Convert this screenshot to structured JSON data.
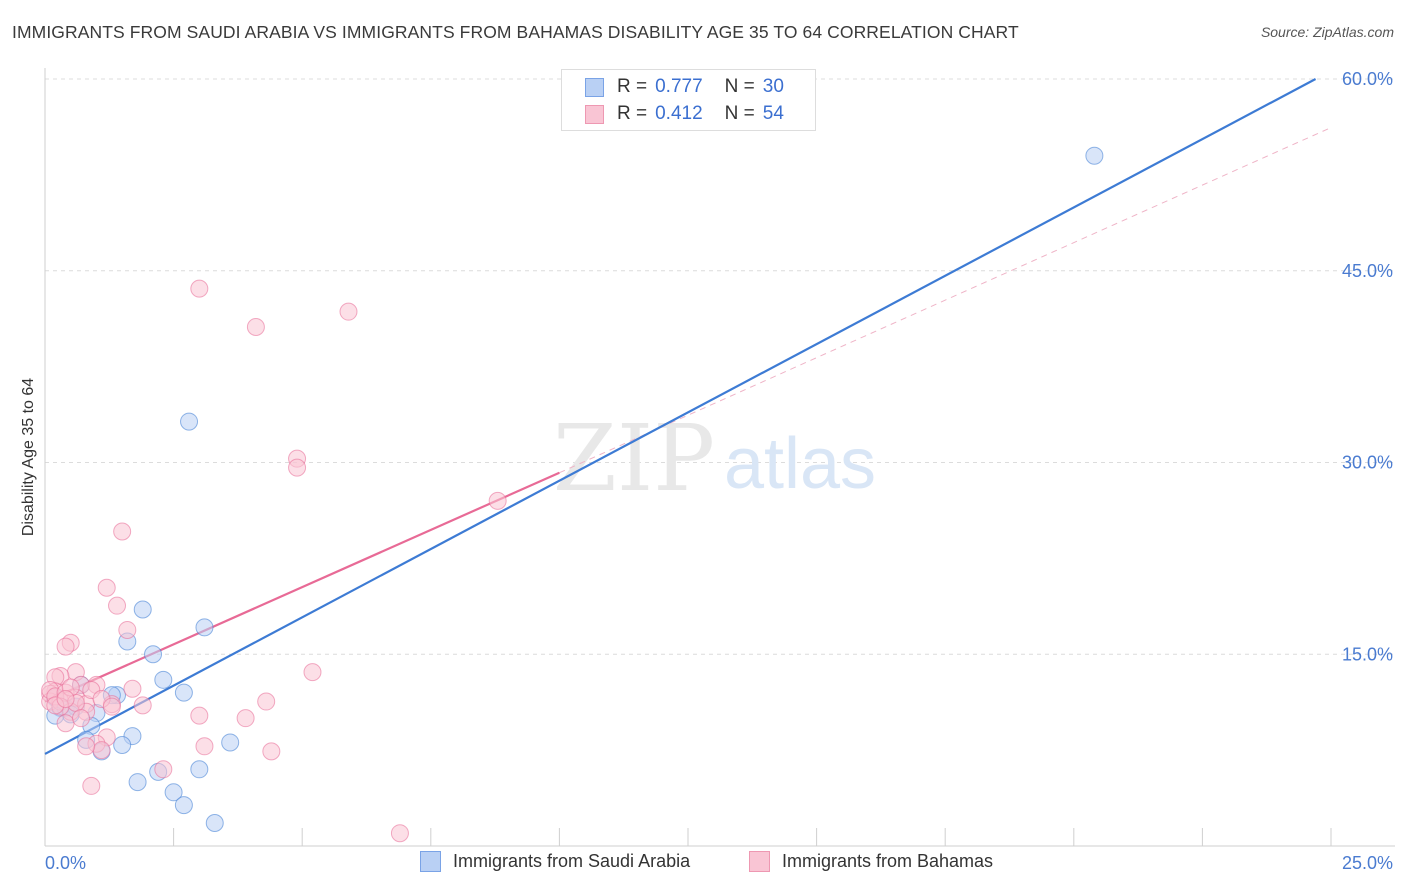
{
  "title": "IMMIGRANTS FROM SAUDI ARABIA VS IMMIGRANTS FROM BAHAMAS DISABILITY AGE 35 TO 64 CORRELATION CHART",
  "source": "Source: ZipAtlas.com",
  "watermark": {
    "zip": "ZIP",
    "atlas": "atlas"
  },
  "legend": {
    "r_label": "R =",
    "n_label": "N =",
    "rows": [
      {
        "r": "0.777",
        "n": "30",
        "fill": "#b9d0f4",
        "stroke": "#7aa3e6"
      },
      {
        "r": "0.412",
        "n": "54",
        "fill": "#f9c5d4",
        "stroke": "#ee98b2"
      }
    ]
  },
  "bottom_legend": [
    {
      "label": "Immigrants from Saudi Arabia",
      "fill": "#b9d0f4",
      "stroke": "#7aa3e6"
    },
    {
      "label": "Immigrants from Bahamas",
      "fill": "#f9c5d4",
      "stroke": "#ee98b2"
    }
  ],
  "chart_data": {
    "type": "scatter",
    "title": "IMMIGRANTS FROM SAUDI ARABIA VS IMMIGRANTS FROM BAHAMAS DISABILITY AGE 35 TO 64 CORRELATION CHART",
    "xlabel": "",
    "ylabel": "Disability Age 35 to 64",
    "xlim": [
      0,
      25
    ],
    "ylim": [
      0,
      60
    ],
    "x_tick_labels": [
      {
        "value": 0,
        "label": "0.0%"
      },
      {
        "value": 25,
        "label": "25.0%"
      }
    ],
    "y_tick_labels": [
      {
        "value": 15,
        "label": "15.0%"
      },
      {
        "value": 30,
        "label": "30.0%"
      },
      {
        "value": 45,
        "label": "45.0%"
      },
      {
        "value": 60,
        "label": "60.0%"
      }
    ],
    "x_minor_ticks": [
      2.5,
      5,
      7.5,
      10,
      12.5,
      15,
      17.5,
      20,
      22.5,
      25
    ],
    "grid": true,
    "colors": {
      "blue": "#3d7bd4",
      "pink": "#e86a96",
      "tick_label": "#4a7bd0"
    },
    "series": [
      {
        "name": "Immigrants from Saudi Arabia",
        "color": "#3d7bd4",
        "fill": "#b9d0f4",
        "points": [
          [
            20.4,
            54.0
          ],
          [
            2.8,
            33.2
          ],
          [
            1.9,
            18.5
          ],
          [
            3.1,
            17.1
          ],
          [
            1.6,
            16.0
          ],
          [
            2.1,
            15.0
          ],
          [
            2.3,
            13.0
          ],
          [
            2.7,
            12.0
          ],
          [
            1.4,
            11.8
          ],
          [
            1.3,
            11.8
          ],
          [
            0.7,
            12.6
          ],
          [
            0.2,
            11.6
          ],
          [
            0.3,
            10.8
          ],
          [
            0.4,
            10.8
          ],
          [
            0.6,
            10.9
          ],
          [
            0.5,
            10.3
          ],
          [
            0.2,
            10.2
          ],
          [
            1.0,
            10.4
          ],
          [
            0.9,
            9.4
          ],
          [
            0.8,
            8.3
          ],
          [
            1.7,
            8.6
          ],
          [
            1.5,
            7.9
          ],
          [
            1.1,
            7.4
          ],
          [
            3.6,
            8.1
          ],
          [
            1.8,
            5.0
          ],
          [
            2.2,
            5.8
          ],
          [
            3.0,
            6.0
          ],
          [
            2.5,
            4.2
          ],
          [
            2.7,
            3.2
          ],
          [
            3.3,
            1.8
          ]
        ],
        "trend": {
          "x0": 0,
          "y0": 7.2,
          "x1": 24.7,
          "y1": 60.0
        }
      },
      {
        "name": "Immigrants from Bahamas",
        "color": "#e86a96",
        "fill": "#f9c5d4",
        "points": [
          [
            3.0,
            43.6
          ],
          [
            5.9,
            41.8
          ],
          [
            4.1,
            40.6
          ],
          [
            4.9,
            30.3
          ],
          [
            4.9,
            29.6
          ],
          [
            8.8,
            27.0
          ],
          [
            1.5,
            24.6
          ],
          [
            1.2,
            20.2
          ],
          [
            1.4,
            18.8
          ],
          [
            1.6,
            16.9
          ],
          [
            0.5,
            15.9
          ],
          [
            0.4,
            15.6
          ],
          [
            0.6,
            13.6
          ],
          [
            0.3,
            13.3
          ],
          [
            0.2,
            13.2
          ],
          [
            5.2,
            13.6
          ],
          [
            0.7,
            12.6
          ],
          [
            1.0,
            12.6
          ],
          [
            1.7,
            12.3
          ],
          [
            0.6,
            11.6
          ],
          [
            0.2,
            12.1
          ],
          [
            0.1,
            11.9
          ],
          [
            0.1,
            11.3
          ],
          [
            0.3,
            11.3
          ],
          [
            0.8,
            11.1
          ],
          [
            1.3,
            11.1
          ],
          [
            1.9,
            11.0
          ],
          [
            4.3,
            11.3
          ],
          [
            3.0,
            10.2
          ],
          [
            3.9,
            10.0
          ],
          [
            0.8,
            10.5
          ],
          [
            0.5,
            10.5
          ],
          [
            0.4,
            9.6
          ],
          [
            1.2,
            8.5
          ],
          [
            1.0,
            8.0
          ],
          [
            1.1,
            7.5
          ],
          [
            0.8,
            7.8
          ],
          [
            3.1,
            7.8
          ],
          [
            4.4,
            7.4
          ],
          [
            2.3,
            6.0
          ],
          [
            0.9,
            4.7
          ],
          [
            6.9,
            1.0
          ],
          [
            0.1,
            12.2
          ],
          [
            0.2,
            11.7
          ],
          [
            0.4,
            12.0
          ],
          [
            0.6,
            11.2
          ],
          [
            0.9,
            12.2
          ],
          [
            1.1,
            11.5
          ],
          [
            1.3,
            10.9
          ],
          [
            0.7,
            10.0
          ],
          [
            0.3,
            10.9
          ],
          [
            0.5,
            12.4
          ],
          [
            0.2,
            11.0
          ],
          [
            0.4,
            11.5
          ]
        ],
        "trend": {
          "x0": 0,
          "y0": 11.3,
          "x1": 10.0,
          "y1": 29.2
        },
        "trend_extension": {
          "x0": 10.0,
          "y0": 29.2,
          "x1": 25.0,
          "y1": 56.2
        }
      }
    ]
  }
}
